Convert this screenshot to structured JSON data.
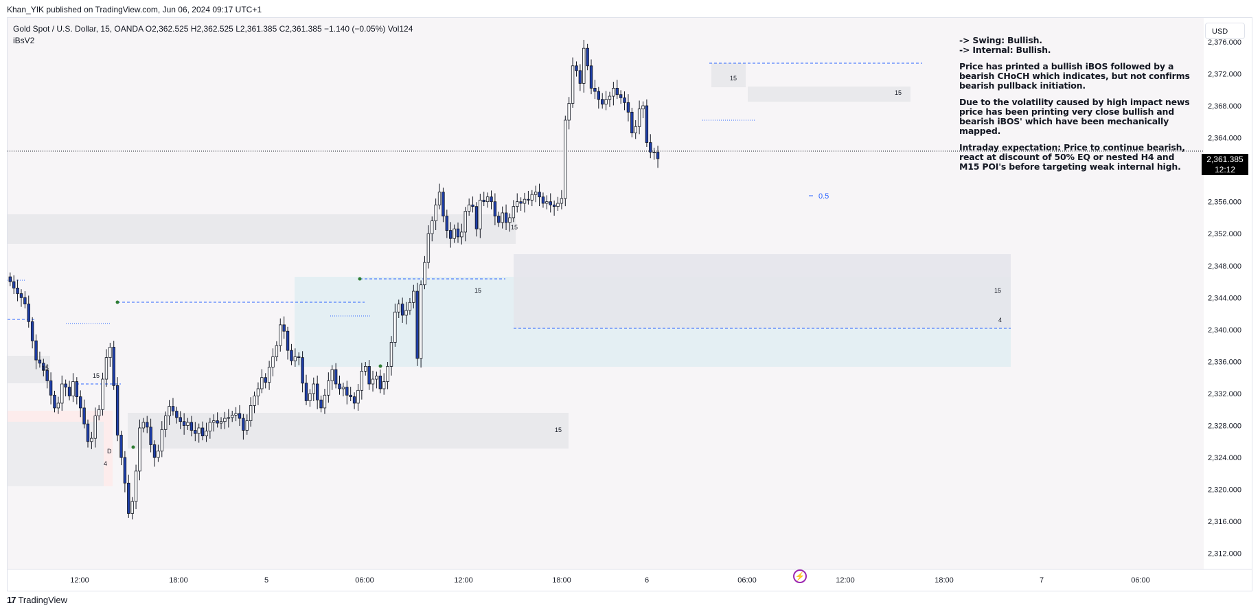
{
  "header": {
    "publish_line": "Khan_YIK published on TradingView.com, Jun 06, 2024 09:17 UTC+1",
    "symbol_line": "Gold Spot / U.S. Dollar, 15, OANDA  O2,362.525  H2,362.525  L2,361.385  C2,361.385  −1.140 (−0.05%)  Vol124",
    "indicator": "iBsV2",
    "currency": "USD"
  },
  "note": {
    "lines": [
      "-> Swing: Bullish.",
      "-> Internal: Bullish."
    ],
    "para1": [
      "Price has printed a bullish iBOS followed by a",
      "bearish CHoCH which indicates, but not confirms",
      "bearish pullback initiation."
    ],
    "para2": [
      "Due to the volatility caused by high impact news",
      "price has been printing very close bullish and",
      "bearish iBOS' which have been mechanically",
      "mapped."
    ],
    "para3": [
      "Intraday expectation: Price to continue bearish,",
      "react at discount of 50% EQ or nested H4 and",
      "M15 POI's before targeting weak internal high."
    ]
  },
  "price_badge": {
    "price": "2,361.385",
    "countdown": "12:12"
  },
  "footer": {
    "logo": "TradingView",
    "logo_mark": "17"
  },
  "colors": {
    "bull_body": "#ffffff",
    "bear_body": "#1e3ea8",
    "wick": "#131722",
    "zone_gray": "#e9e9ec",
    "zone_teal": "#ddf0f2",
    "zone_pink": "#fdecec",
    "dash_blue": "#2962ff",
    "dot_green": "#2e7d32",
    "bg": "#f7f5f7",
    "accent_purple": "#9c27b0"
  },
  "chart_data": {
    "type": "candlestick",
    "symbol": "Gold Spot / U.S. Dollar",
    "interval": "15",
    "ylim": [
      2310,
      2379
    ],
    "y_ticks": [
      "2,312.000",
      "2,316.000",
      "2,320.000",
      "2,324.000",
      "2,328.000",
      "2,332.000",
      "2,336.000",
      "2,340.000",
      "2,344.000",
      "2,348.000",
      "2,352.000",
      "2,356.000",
      "2,360.000",
      "2,364.000",
      "2,368.000",
      "2,372.000",
      "2,376.000"
    ],
    "x_ticks": [
      "12:00",
      "18:00",
      "5",
      "06:00",
      "12:00",
      "18:00",
      "6",
      "06:00",
      "12:00",
      "18:00",
      "7",
      "06:00"
    ],
    "last_price": 2361.385,
    "closes": [
      2346.0,
      2345.2,
      2344.5,
      2344.0,
      2343.2,
      2341.0,
      2338.6,
      2336.2,
      2335.8,
      2334.9,
      2333.6,
      2331.8,
      2330.2,
      2330.8,
      2333.2,
      2332.8,
      2331.7,
      2333.5,
      2331.6,
      2330.2,
      2328.2,
      2326.0,
      2326.4,
      2329.2,
      2330.0,
      2333.8,
      2336.5,
      2337.8,
      2333.0,
      2326.8,
      2324.0,
      2320.8,
      2317.0,
      2318.5,
      2322.3,
      2327.7,
      2328.4,
      2327.8,
      2325.6,
      2324.0,
      2324.8,
      2327.5,
      2329.2,
      2330.4,
      2329.8,
      2329.0,
      2328.5,
      2328.0,
      2328.4,
      2327.4,
      2327.0,
      2327.7,
      2326.7,
      2327.3,
      2328.4,
      2328.6,
      2328.3,
      2328.5,
      2328.9,
      2329.0,
      2329.3,
      2329.5,
      2328.9,
      2327.4,
      2328.6,
      2330.5,
      2331.7,
      2332.6,
      2334.0,
      2333.4,
      2335.3,
      2336.6,
      2338.0,
      2340.6,
      2339.8,
      2337.4,
      2336.1,
      2336.6,
      2336.5,
      2333.3,
      2331.1,
      2332.0,
      2333.2,
      2331.2,
      2330.2,
      2331.8,
      2333.6,
      2335.0,
      2333.2,
      2332.6,
      2332.8,
      2331.8,
      2331.6,
      2330.8,
      2332.4,
      2334.8,
      2335.4,
      2333.2,
      2333.8,
      2334.2,
      2332.6,
      2333.5,
      2335.4,
      2338.4,
      2342.2,
      2343.2,
      2341.8,
      2342.4,
      2343.4,
      2344.8,
      2336.4,
      2345.6,
      2348.4,
      2352.0,
      2353.6,
      2355.6,
      2357.2,
      2354.2,
      2352.4,
      2351.4,
      2352.6,
      2351.6,
      2352.2,
      2354.8,
      2355.6,
      2355.4,
      2352.6,
      2356.2,
      2356.0,
      2356.6,
      2356.0,
      2354.2,
      2353.4,
      2354.6,
      2353.4,
      2354.0,
      2355.4,
      2356.0,
      2355.8,
      2356.3,
      2356.2,
      2356.9,
      2357.2,
      2356.6,
      2355.8,
      2356.0,
      2355.6,
      2355.4,
      2355.8,
      2356.4,
      2366.2,
      2368.3,
      2373.0,
      2372.4,
      2370.8,
      2375.2,
      2373.0,
      2370.2,
      2369.8,
      2368.8,
      2368.2,
      2368.8,
      2369.2,
      2370.2,
      2369.4,
      2369.0,
      2368.4,
      2367.2,
      2364.6,
      2365.4,
      2367.6,
      2368.0,
      2363.4,
      2362.2,
      2362.2,
      2361.385
    ]
  }
}
